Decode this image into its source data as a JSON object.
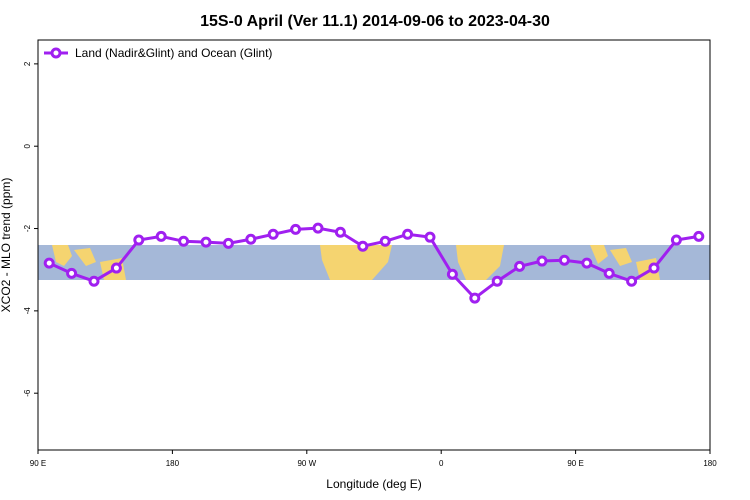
{
  "chart_data": {
    "type": "line",
    "title": "15S-0 April (Ver 11.1)   2014-09-06 to 2023-04-30",
    "x_label": "Longitude (deg E)",
    "y_label": "XCO2 - MLO trend (ppm)",
    "x": [
      97.5,
      112.5,
      127.5,
      142.5,
      157.5,
      172.5,
      187.5,
      202.5,
      217.5,
      232.5,
      247.5,
      262.5,
      277.5,
      292.5,
      307.5,
      322.5,
      337.5,
      352.5,
      367.5,
      382.5,
      397.5,
      412.5,
      427.5,
      442.5,
      457.5,
      472.5,
      487.5,
      502.5,
      517.5,
      532.5
    ],
    "series": [
      {
        "name": "Land (Nadir&Glint) and Ocean (Glint)",
        "color": "#a020f0",
        "values": [
          -2.84,
          -3.09,
          -3.28,
          -2.96,
          -2.28,
          -2.19,
          -2.31,
          -2.33,
          -2.36,
          -2.26,
          -2.14,
          -2.02,
          -1.99,
          -2.09,
          -2.43,
          -2.31,
          -2.14,
          -2.21,
          -3.11,
          -3.69,
          -3.28,
          -2.92,
          -2.79,
          -2.77,
          -2.84,
          -3.09,
          -3.28,
          -2.96,
          -2.28,
          -2.19
        ]
      }
    ],
    "xlim": [
      90,
      540
    ],
    "xticks": [
      {
        "value": 90,
        "label": "90 E"
      },
      180,
      {
        "value": 270,
        "label": "90 W"
      },
      {
        "value": 360,
        "label": "0"
      },
      {
        "value": 450,
        "label": "90 E"
      },
      {
        "value": 540,
        "label": "180"
      }
    ],
    "ylim": [
      -7.38,
      2.58
    ],
    "yticks": [
      -6,
      -4,
      -2,
      0,
      2
    ],
    "legend": "top-left"
  }
}
